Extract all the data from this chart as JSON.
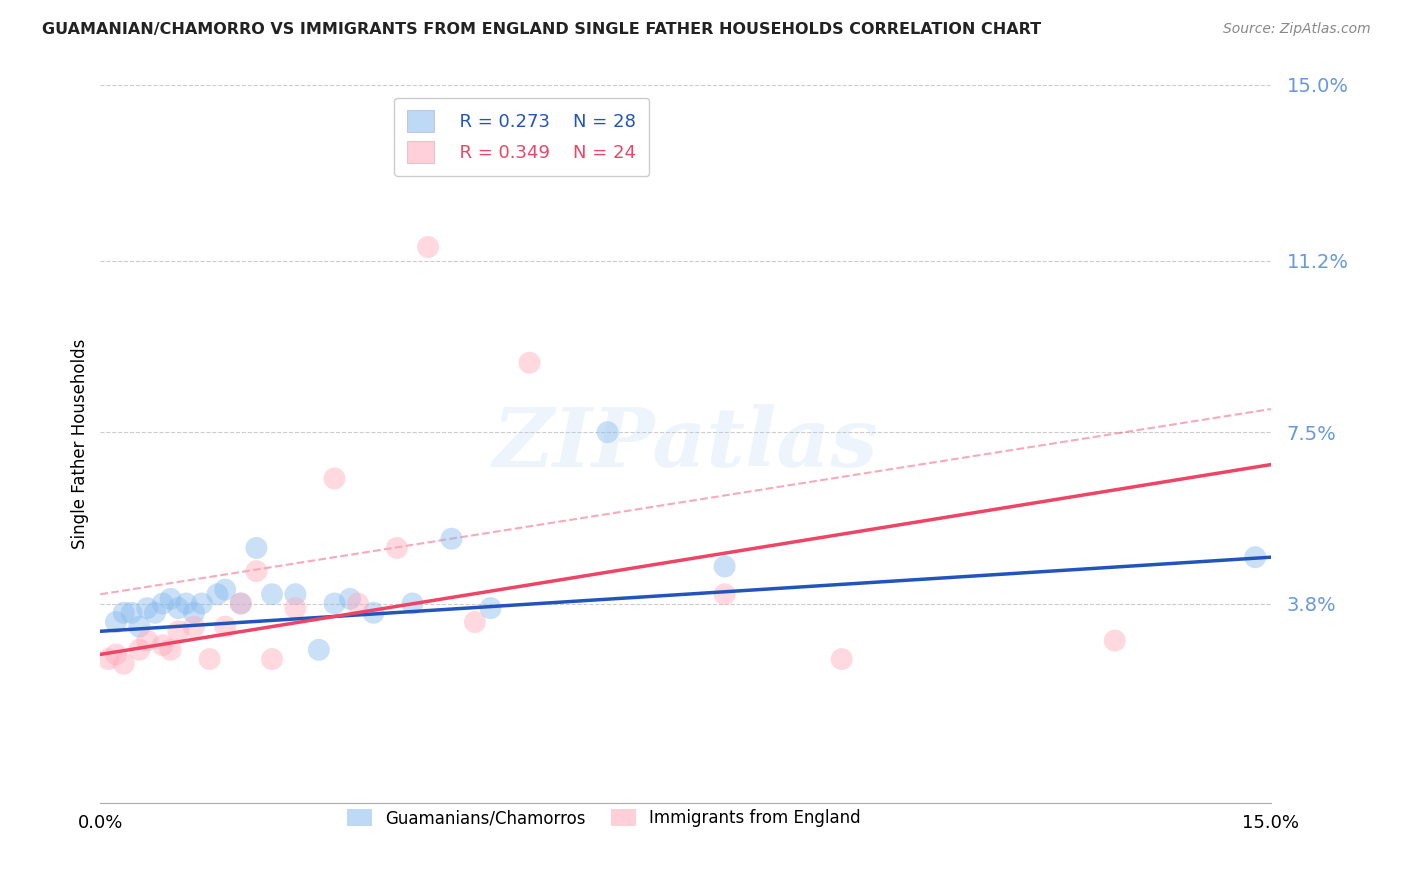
{
  "title": "GUAMANIAN/CHAMORRO VS IMMIGRANTS FROM ENGLAND SINGLE FATHER HOUSEHOLDS CORRELATION CHART",
  "source": "Source: ZipAtlas.com",
  "ylabel": "Single Father Households",
  "xmin": 0.0,
  "xmax": 0.15,
  "ymin": -0.005,
  "ymax": 0.15,
  "yticks": [
    0.038,
    0.075,
    0.112,
    0.15
  ],
  "ytick_labels": [
    "3.8%",
    "7.5%",
    "11.2%",
    "15.0%"
  ],
  "legend1_r": "R = 0.273",
  "legend1_n": "N = 28",
  "legend2_r": "R = 0.349",
  "legend2_n": "N = 24",
  "blue_color": "#88bbee",
  "pink_color": "#ffaabb",
  "blue_line_color": "#2255bb",
  "pink_line_color": "#ee4466",
  "blue_x": [
    0.002,
    0.003,
    0.004,
    0.005,
    0.006,
    0.007,
    0.008,
    0.009,
    0.01,
    0.011,
    0.012,
    0.013,
    0.015,
    0.016,
    0.018,
    0.02,
    0.022,
    0.025,
    0.028,
    0.03,
    0.032,
    0.035,
    0.04,
    0.045,
    0.05,
    0.065,
    0.08,
    0.148
  ],
  "blue_y": [
    0.034,
    0.036,
    0.036,
    0.033,
    0.037,
    0.036,
    0.038,
    0.039,
    0.037,
    0.038,
    0.036,
    0.038,
    0.04,
    0.041,
    0.038,
    0.05,
    0.04,
    0.04,
    0.028,
    0.038,
    0.039,
    0.036,
    0.038,
    0.052,
    0.037,
    0.075,
    0.046,
    0.048
  ],
  "pink_x": [
    0.001,
    0.002,
    0.003,
    0.005,
    0.006,
    0.008,
    0.009,
    0.01,
    0.012,
    0.014,
    0.016,
    0.018,
    0.02,
    0.022,
    0.025,
    0.03,
    0.033,
    0.038,
    0.042,
    0.048,
    0.055,
    0.08,
    0.095,
    0.13
  ],
  "pink_y": [
    0.026,
    0.027,
    0.025,
    0.028,
    0.03,
    0.029,
    0.028,
    0.032,
    0.033,
    0.026,
    0.033,
    0.038,
    0.045,
    0.026,
    0.037,
    0.065,
    0.038,
    0.05,
    0.115,
    0.034,
    0.09,
    0.04,
    0.026,
    0.03
  ],
  "watermark_text": "ZIPatlas",
  "grid_color": "#cccccc",
  "blue_trend_start_y": 0.032,
  "blue_trend_end_y": 0.048,
  "pink_trend_start_y": 0.027,
  "pink_trend_end_y": 0.068,
  "dash_trend_start_y": 0.04,
  "dash_trend_end_y": 0.08
}
